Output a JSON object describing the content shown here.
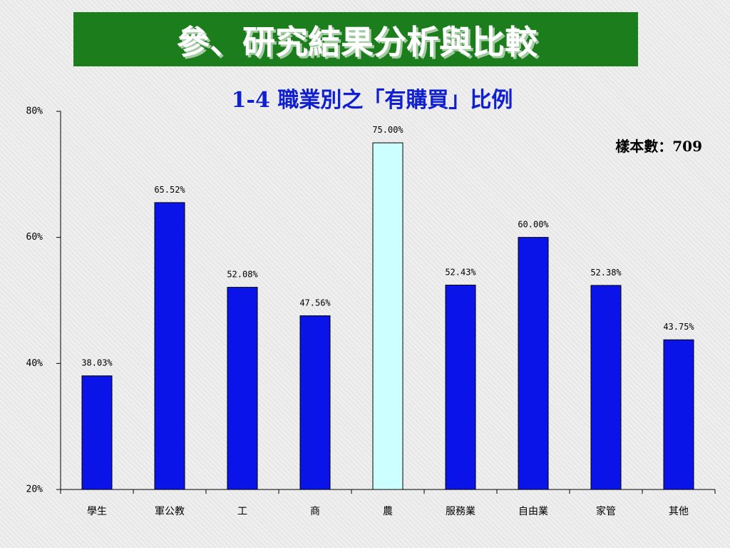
{
  "header": {
    "title": "參、研究結果分析與比較"
  },
  "chart_data": {
    "type": "bar",
    "title": "1-4 職業別之「有購買」比例",
    "annotation": "樣本數：709",
    "categories": [
      "學生",
      "軍公教",
      "工",
      "商",
      "農",
      "服務業",
      "自由業",
      "家管",
      "其他"
    ],
    "values": [
      38.03,
      65.52,
      52.08,
      47.56,
      75.0,
      52.43,
      60.0,
      52.38,
      43.75
    ],
    "value_labels": [
      "38.03%",
      "65.52%",
      "52.08%",
      "47.56%",
      "75.00%",
      "52.43%",
      "60.00%",
      "52.38%",
      "43.75%"
    ],
    "colors": [
      "#0a14e8",
      "#0a14e8",
      "#0a14e8",
      "#0a14e8",
      "#ccffff",
      "#0a14e8",
      "#0a14e8",
      "#0a14e8",
      "#0a14e8"
    ],
    "ylim": [
      20,
      80
    ],
    "yticks": [
      {
        "value": 20,
        "label": "20%"
      },
      {
        "value": 40,
        "label": "40%"
      },
      {
        "value": 60,
        "label": "60%"
      },
      {
        "value": 80,
        "label": "80%"
      }
    ],
    "grid": false
  }
}
